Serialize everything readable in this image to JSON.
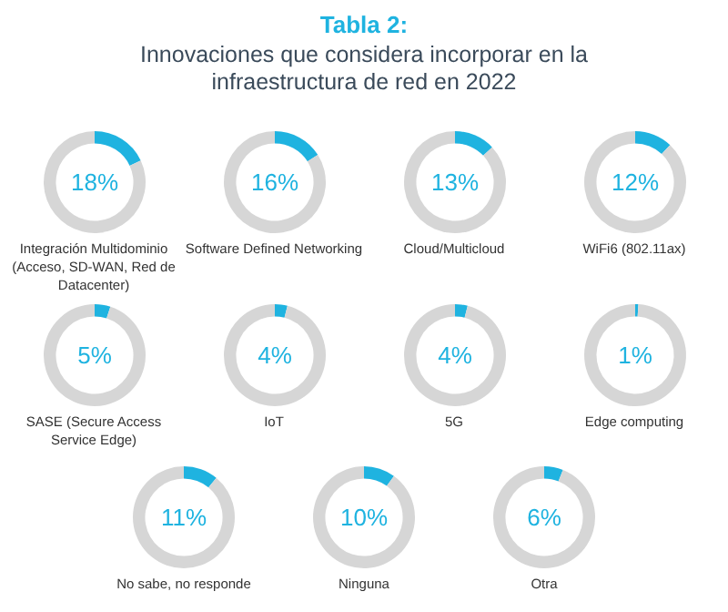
{
  "chart_data": [
    {
      "type": "donut",
      "title": "Tabla 2:",
      "subtitle": "Innovaciones que considera incorporar en la infraestructura de red en 2022",
      "xlabel": "Integración Multidominio (Acceso, SD-WAN, Red de Datacenter)",
      "categories": [
        null,
        null
      ],
      "values": [
        18,
        82
      ],
      "colors": [
        "#1fb3e0",
        "#d6d6d6"
      ],
      "annotations": [
        "18%"
      ]
    },
    {
      "type": "donut",
      "xlabel": "Software Defined Networking",
      "categories": [
        null,
        null
      ],
      "values": [
        16,
        84
      ],
      "colors": [
        "#1fb3e0",
        "#d6d6d6"
      ],
      "annotations": [
        "16%"
      ]
    },
    {
      "type": "donut",
      "xlabel": "Cloud/Multicloud",
      "categories": [
        null,
        null
      ],
      "values": [
        13,
        87
      ],
      "colors": [
        "#1fb3e0",
        "#d6d6d6"
      ],
      "annotations": [
        "13%"
      ]
    },
    {
      "type": "donut",
      "xlabel": "WiFi6 (802.11ax)",
      "categories": [
        null,
        null
      ],
      "values": [
        12,
        88
      ],
      "colors": [
        "#1fb3e0",
        "#d6d6d6"
      ],
      "annotations": [
        "12%"
      ]
    },
    {
      "type": "donut",
      "xlabel": "SASE (Secure Access Service Edge)",
      "categories": [
        null,
        null
      ],
      "values": [
        5,
        95
      ],
      "colors": [
        "#1fb3e0",
        "#d6d6d6"
      ],
      "annotations": [
        "5%"
      ]
    },
    {
      "type": "donut",
      "xlabel": "IoT",
      "categories": [
        null,
        null
      ],
      "values": [
        4,
        96
      ],
      "colors": [
        "#1fb3e0",
        "#d6d6d6"
      ],
      "annotations": [
        "4%"
      ]
    },
    {
      "type": "donut",
      "xlabel": "5G",
      "categories": [
        null,
        null
      ],
      "values": [
        4,
        96
      ],
      "colors": [
        "#1fb3e0",
        "#d6d6d6"
      ],
      "annotations": [
        "4%"
      ]
    },
    {
      "type": "donut",
      "xlabel": "Edge computing",
      "categories": [
        null,
        null
      ],
      "values": [
        1,
        99
      ],
      "colors": [
        "#1fb3e0",
        "#d6d6d6"
      ],
      "annotations": [
        "1%"
      ]
    },
    {
      "type": "donut",
      "xlabel": "No sabe, no responde",
      "categories": [
        null,
        null
      ],
      "values": [
        11,
        89
      ],
      "colors": [
        "#1fb3e0",
        "#d6d6d6"
      ],
      "annotations": [
        "11%"
      ]
    },
    {
      "type": "donut",
      "xlabel": "Ninguna",
      "categories": [
        null,
        null
      ],
      "values": [
        10,
        90
      ],
      "colors": [
        "#1fb3e0",
        "#d6d6d6"
      ],
      "annotations": [
        "10%"
      ]
    },
    {
      "type": "donut",
      "xlabel": "Otra",
      "categories": [
        null,
        null
      ],
      "values": [
        6,
        94
      ],
      "colors": [
        "#1fb3e0",
        "#d6d6d6"
      ],
      "annotations": [
        "6%"
      ]
    }
  ]
}
